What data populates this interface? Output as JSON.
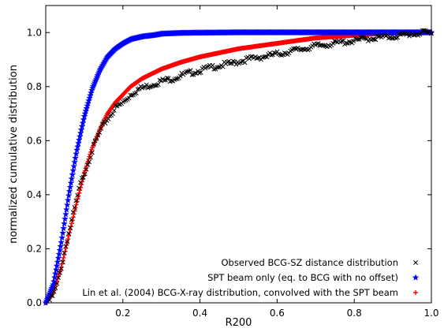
{
  "chart_data": {
    "type": "scatter",
    "title": "",
    "xlabel": "R200",
    "ylabel": "normalized cumulative distribution",
    "xlim": [
      0.0,
      1.0
    ],
    "ylim": [
      0.0,
      1.1
    ],
    "x_ticks": [
      {
        "value": 0.2,
        "label": "0.2"
      },
      {
        "value": 0.4,
        "label": "0.4"
      },
      {
        "value": 0.6,
        "label": "0.6"
      },
      {
        "value": 0.8,
        "label": "0.8"
      },
      {
        "value": 1.0,
        "label": "1.0"
      }
    ],
    "y_ticks": [
      {
        "value": 0.0,
        "label": "0.0"
      },
      {
        "value": 0.2,
        "label": "0.2"
      },
      {
        "value": 0.4,
        "label": "0.4"
      },
      {
        "value": 0.6,
        "label": "0.6"
      },
      {
        "value": 0.8,
        "label": "0.8"
      },
      {
        "value": 1.0,
        "label": "1.0"
      }
    ],
    "legend_position": "bottom-right",
    "grid": false,
    "series": [
      {
        "name": "Observed BCG-SZ distance distribution",
        "marker": "x",
        "color": "#000000",
        "x": [
          0.01,
          0.02,
          0.03,
          0.035,
          0.04,
          0.045,
          0.05,
          0.055,
          0.06,
          0.065,
          0.07,
          0.075,
          0.08,
          0.085,
          0.09,
          0.095,
          0.1,
          0.11,
          0.12,
          0.13,
          0.14,
          0.15,
          0.16,
          0.17,
          0.18,
          0.19,
          0.2,
          0.22,
          0.24,
          0.26,
          0.28,
          0.3,
          0.33,
          0.36,
          0.4,
          0.44,
          0.48,
          0.52,
          0.56,
          0.6,
          0.65,
          0.7,
          0.75,
          0.8,
          0.85,
          0.9,
          0.95,
          1.0
        ],
        "y": [
          0.01,
          0.03,
          0.07,
          0.1,
          0.13,
          0.16,
          0.2,
          0.23,
          0.26,
          0.29,
          0.32,
          0.35,
          0.38,
          0.41,
          0.44,
          0.46,
          0.48,
          0.52,
          0.56,
          0.6,
          0.63,
          0.66,
          0.68,
          0.7,
          0.72,
          0.73,
          0.74,
          0.77,
          0.79,
          0.8,
          0.81,
          0.82,
          0.83,
          0.845,
          0.86,
          0.875,
          0.885,
          0.9,
          0.91,
          0.92,
          0.935,
          0.95,
          0.96,
          0.97,
          0.98,
          0.985,
          0.995,
          1.0
        ]
      },
      {
        "name": "SPT beam only (eq. to BCG with no offset)",
        "marker": "*",
        "color": "#0000ff",
        "x": [
          0.0,
          0.02,
          0.04,
          0.06,
          0.08,
          0.1,
          0.12,
          0.14,
          0.16,
          0.18,
          0.2,
          0.22,
          0.25,
          0.28,
          0.3,
          0.35,
          0.4,
          0.5,
          0.6,
          0.7,
          0.8,
          0.9,
          1.0
        ],
        "y": [
          0.0,
          0.07,
          0.22,
          0.4,
          0.56,
          0.69,
          0.79,
          0.86,
          0.91,
          0.94,
          0.96,
          0.975,
          0.985,
          0.99,
          0.995,
          0.998,
          0.999,
          1.0,
          1.0,
          1.0,
          1.0,
          1.0,
          1.0
        ]
      },
      {
        "name": "Lin et al. (2004) BCG-X-ray distribution, convolved with the SPT beam",
        "marker": "+",
        "color": "#ff0000",
        "x": [
          0.0,
          0.02,
          0.04,
          0.06,
          0.08,
          0.1,
          0.12,
          0.14,
          0.16,
          0.18,
          0.2,
          0.22,
          0.25,
          0.3,
          0.35,
          0.4,
          0.45,
          0.5,
          0.55,
          0.6,
          0.65,
          0.7,
          0.75,
          0.8,
          0.85,
          0.9,
          0.95,
          1.0
        ],
        "y": [
          0.0,
          0.04,
          0.13,
          0.25,
          0.37,
          0.48,
          0.57,
          0.64,
          0.7,
          0.74,
          0.77,
          0.8,
          0.83,
          0.865,
          0.89,
          0.91,
          0.925,
          0.94,
          0.95,
          0.96,
          0.97,
          0.98,
          0.985,
          0.99,
          0.995,
          0.998,
          1.0,
          1.0
        ]
      }
    ]
  }
}
